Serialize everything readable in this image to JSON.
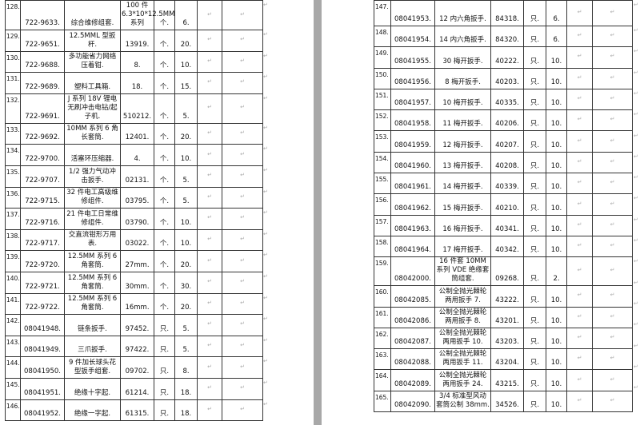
{
  "paragraph_mark": "↵",
  "left_table": {
    "rows": [
      [
        "128.",
        "722-9633.",
        "综合维修组套.",
        "100 件 6.3*10*12.5MM 系列",
        "个.",
        "6."
      ],
      [
        "129.",
        "722-9651.",
        "12.5MML 型扳杆.",
        "13919.",
        "个.",
        "20."
      ],
      [
        "130.",
        "722-9688.",
        "多功能省力网络压着钳.",
        "8.",
        "个.",
        "10."
      ],
      [
        "131.",
        "722-9689.",
        "塑料工具箱.",
        "18.",
        "个.",
        "15."
      ],
      [
        "132.",
        "722-9691.",
        "J 系列 18V 锂电无刷冲击电钻/起子机.",
        "510212.",
        "个.",
        "5."
      ],
      [
        "133.",
        "722-9692.",
        "10MM 系列 6 角长套筒.",
        "12401.",
        "个.",
        "20."
      ],
      [
        "134.",
        "722-9700.",
        "活塞环压缩器.",
        "4.",
        "个.",
        "10."
      ],
      [
        "135.",
        "722-9707.",
        "1/2 强力气动冲击扳手.",
        "02131.",
        "个.",
        "5."
      ],
      [
        "136.",
        "722-9715.",
        "32 件电工高级维修组件.",
        "03795.",
        "个.",
        "5."
      ],
      [
        "137.",
        "722-9716.",
        "21 件电工日常维修组件.",
        "03790.",
        "个.",
        "10."
      ],
      [
        "138.",
        "722-9717.",
        "交直流钳形万用表.",
        "03022.",
        "个.",
        "10."
      ],
      [
        "139.",
        "722-9720.",
        "12.5MM 系列 6 角套筒.",
        "27mm.",
        "个.",
        "20."
      ],
      [
        "140.",
        "722-9721.",
        "12.5MM 系列 6 角套筒.",
        "30mm.",
        "个.",
        "30."
      ],
      [
        "141.",
        "722-9722.",
        "12.5MM 系列 6 角套筒.",
        "16mm.",
        "个.",
        "20."
      ],
      [
        "142.",
        "08041948.",
        "链条扳手.",
        "97452.",
        "只.",
        "5."
      ],
      [
        "143.",
        "08041949.",
        "三爪扳手.",
        "97422.",
        "只.",
        "5."
      ],
      [
        "144.",
        "08041950.",
        "9 件加长球头花型扳手组套.",
        "09702.",
        "只.",
        "8."
      ],
      [
        "145.",
        "08041951.",
        "绝缘十字起.",
        "61214.",
        "只.",
        "18."
      ],
      [
        "146.",
        "08041952.",
        "绝缘一字起.",
        "61315.",
        "只.",
        "18."
      ]
    ]
  },
  "right_table": {
    "rows": [
      [
        "147.",
        "08041953.",
        "12 内六角扳手.",
        "84318.",
        "只.",
        "6."
      ],
      [
        "148.",
        "08041954.",
        "14 内六角扳手.",
        "84320.",
        "只.",
        "6."
      ],
      [
        "149.",
        "08041955.",
        "30 梅开扳手.",
        "40222.",
        "只.",
        "10."
      ],
      [
        "150.",
        "08041956.",
        "8 梅开扳手.",
        "40203.",
        "只.",
        "10."
      ],
      [
        "151.",
        "08041957.",
        "10 梅开扳手.",
        "40335.",
        "只.",
        "10."
      ],
      [
        "152.",
        "08041958.",
        "11 梅开扳手.",
        "40206.",
        "只.",
        "10."
      ],
      [
        "153.",
        "08041959.",
        "12 梅开扳手.",
        "40207.",
        "只.",
        "10."
      ],
      [
        "154.",
        "08041960.",
        "13 梅开扳手.",
        "40208.",
        "只.",
        "10."
      ],
      [
        "155.",
        "08041961.",
        "14 梅开扳手.",
        "40339.",
        "只.",
        "10."
      ],
      [
        "156.",
        "08041962.",
        "15 梅开扳手.",
        "40210.",
        "只.",
        "10."
      ],
      [
        "157.",
        "08041963.",
        "16 梅开扳手.",
        "40341.",
        "只.",
        "10."
      ],
      [
        "158.",
        "08041964.",
        "17 梅开扳手.",
        "40342.",
        "只.",
        "10."
      ],
      [
        "159.",
        "08042000.",
        "16 件套 10MM 系列 VDE 绝缘套筒组套.",
        "09268.",
        "只.",
        "2."
      ],
      [
        "160.",
        "08042085.",
        "公制全抛光棘轮两用扳手 7.",
        "43222.",
        "只.",
        "10."
      ],
      [
        "161.",
        "08042086.",
        "公制全抛光棘轮两用扳手 8.",
        "43201.",
        "只.",
        "10."
      ],
      [
        "162.",
        "08042087.",
        "公制全抛光棘轮两用扳手 10.",
        "43203.",
        "只.",
        "10."
      ],
      [
        "163.",
        "08042088.",
        "公制全抛光棘轮两用扳手 11.",
        "43204.",
        "只.",
        "10."
      ],
      [
        "164.",
        "08042089.",
        "公制全抛光棘轮两用扳手 24.",
        "43215.",
        "只.",
        "10."
      ],
      [
        "165.",
        "08042090.",
        "3/4 标准型风动套筒公制 38mm.",
        "34526.",
        "只.",
        "10."
      ]
    ]
  }
}
